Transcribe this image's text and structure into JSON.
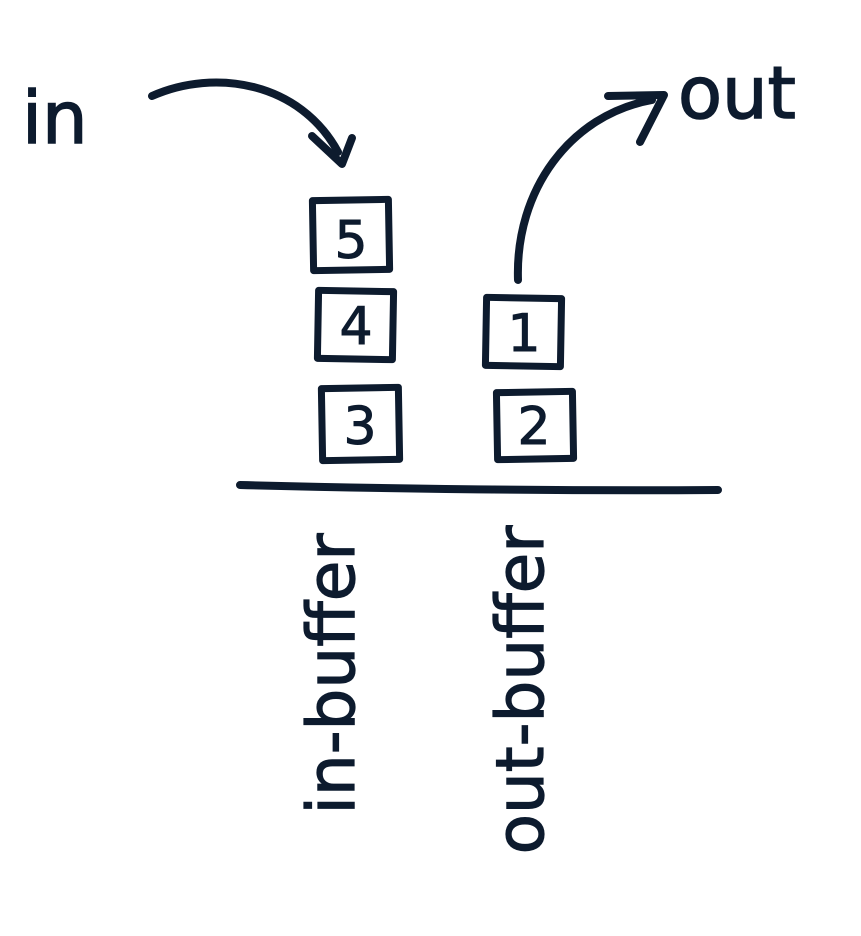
{
  "labels": {
    "in": "in",
    "out": "out"
  },
  "stacks": {
    "in_stack": {
      "label": "in-buffer",
      "items": [
        "5",
        "4",
        "3"
      ]
    },
    "out_stack": {
      "label": "out-buffer",
      "items": [
        "1",
        "2"
      ]
    }
  },
  "colors": {
    "ink": "#0d1b2e",
    "background": "#ffffff"
  }
}
